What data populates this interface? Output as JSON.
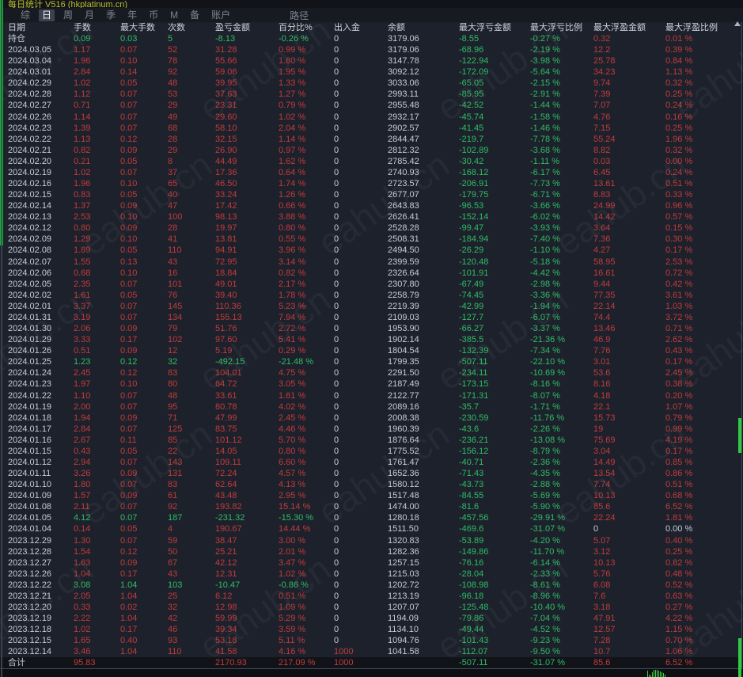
{
  "window": {
    "title": "每日统计 V516 (hkplatinum.cn)",
    "watermark": "eahub.cn"
  },
  "menu_bar": {
    "items": [
      "综",
      "日",
      "周",
      "月",
      "季",
      "年",
      "币",
      "M",
      "备",
      "账户"
    ],
    "selected": "日",
    "path_label": "路径"
  },
  "table": {
    "columns": [
      "日期",
      "手数",
      "最大手数",
      "次数",
      "盈亏金额",
      "百分比%",
      "出入金",
      "余额",
      "最大浮亏金额",
      "最大浮亏比例",
      "最大浮盈金额",
      "最大浮盈比例"
    ],
    "position_label": "持仓",
    "total_label": "合计",
    "rows": [
      [
        "持仓",
        "0.09",
        "0.03",
        "5",
        "-8.13",
        "-0.26 %",
        "0",
        "3179.06",
        "-8.55",
        "-0.27 %",
        "0.32",
        "0.01 %"
      ],
      [
        "2024.03.05",
        "1.17",
        "0.07",
        "52",
        "31.28",
        "0.99 %",
        "0",
        "3179.06",
        "-68.96",
        "-2.19 %",
        "12.2",
        "0.39 %"
      ],
      [
        "2024.03.04",
        "1.96",
        "0.10",
        "78",
        "55.66",
        "1.80 %",
        "0",
        "3147.78",
        "-122.94",
        "-3.98 %",
        "25.78",
        "0.84 %"
      ],
      [
        "2024.03.01",
        "2.84",
        "0.14",
        "92",
        "59.06",
        "1.95 %",
        "0",
        "3092.12",
        "-172.09",
        "-5.64 %",
        "34.23",
        "1.13 %"
      ],
      [
        "2024.02.29",
        "1.02",
        "0.05",
        "48",
        "39.95",
        "1.33 %",
        "0",
        "3033.06",
        "-65.05",
        "-2.15 %",
        "9.74",
        "0.32 %"
      ],
      [
        "2024.02.28",
        "1.12",
        "0.07",
        "53",
        "37.63",
        "1.27 %",
        "0",
        "2993.11",
        "-85.95",
        "-2.91 %",
        "7.39",
        "0.25 %"
      ],
      [
        "2024.02.27",
        "0.71",
        "0.07",
        "29",
        "23.31",
        "0.79 %",
        "0",
        "2955.48",
        "-42.52",
        "-1.44 %",
        "7.07",
        "0.24 %"
      ],
      [
        "2024.02.26",
        "1.14",
        "0.07",
        "49",
        "29.60",
        "1.02 %",
        "0",
        "2932.17",
        "-45.74",
        "-1.58 %",
        "4.76",
        "0.16 %"
      ],
      [
        "2024.02.23",
        "1.39",
        "0.07",
        "68",
        "58.10",
        "2.04 %",
        "0",
        "2902.57",
        "-41.45",
        "-1.46 %",
        "7.15",
        "0.25 %"
      ],
      [
        "2024.02.22",
        "1.13",
        "0.12",
        "28",
        "32.15",
        "1.14 %",
        "0",
        "2844.47",
        "-219.7",
        "-7.78 %",
        "55.24",
        "1.96 %"
      ],
      [
        "2024.02.21",
        "0.82",
        "0.09",
        "29",
        "26.90",
        "0.97 %",
        "0",
        "2812.32",
        "-102.89",
        "-3.68 %",
        "8.82",
        "0.32 %"
      ],
      [
        "2024.02.20",
        "0.21",
        "0.05",
        "8",
        "44.49",
        "1.62 %",
        "0",
        "2785.42",
        "-30.42",
        "-1.11 %",
        "0.03",
        "0.00 %"
      ],
      [
        "2024.02.19",
        "1.02",
        "0.07",
        "37",
        "17.36",
        "0.64 %",
        "0",
        "2740.93",
        "-168.12",
        "-6.17 %",
        "6.45",
        "0.24 %"
      ],
      [
        "2024.02.16",
        "1.96",
        "0.10",
        "65",
        "46.50",
        "1.74 %",
        "0",
        "2723.57",
        "-206.91",
        "-7.73 %",
        "13.61",
        "0.51 %"
      ],
      [
        "2024.02.15",
        "0.83",
        "0.05",
        "40",
        "33.24",
        "1.26 %",
        "0",
        "2677.07",
        "-179.75",
        "-6.71 %",
        "8.83",
        "0.33 %"
      ],
      [
        "2024.02.14",
        "1.37",
        "0.09",
        "47",
        "17.42",
        "0.66 %",
        "0",
        "2643.83",
        "-96.53",
        "-3.66 %",
        "24.99",
        "0.96 %"
      ],
      [
        "2024.02.13",
        "2.53",
        "0.10",
        "100",
        "98.13",
        "3.88 %",
        "0",
        "2626.41",
        "-152.14",
        "-6.02 %",
        "14.42",
        "0.57 %"
      ],
      [
        "2024.02.12",
        "0.80",
        "0.09",
        "28",
        "19.97",
        "0.80 %",
        "0",
        "2528.28",
        "-99.47",
        "-3.93 %",
        "3.64",
        "0.15 %"
      ],
      [
        "2024.02.09",
        "1.29",
        "0.10",
        "41",
        "13.81",
        "0.55 %",
        "0",
        "2508.31",
        "-184.94",
        "-7.40 %",
        "7.36",
        "0.30 %"
      ],
      [
        "2024.02.08",
        "1.89",
        "0.05",
        "110",
        "94.91",
        "3.96 %",
        "0",
        "2494.50",
        "-26.29",
        "-1.10 %",
        "4.27",
        "0.17 %"
      ],
      [
        "2024.02.07",
        "1.55",
        "0.13",
        "43",
        "72.95",
        "3.14 %",
        "0",
        "2399.59",
        "-120.48",
        "-5.18 %",
        "58.95",
        "2.53 %"
      ],
      [
        "2024.02.06",
        "0.68",
        "0.10",
        "16",
        "18.84",
        "0.82 %",
        "0",
        "2326.64",
        "-101.91",
        "-4.42 %",
        "16.61",
        "0.72 %"
      ],
      [
        "2024.02.05",
        "2.35",
        "0.07",
        "101",
        "49.01",
        "2.17 %",
        "0",
        "2307.80",
        "-67.49",
        "-2.98 %",
        "9.44",
        "0.42 %"
      ],
      [
        "2024.02.02",
        "1.61",
        "0.05",
        "76",
        "39.40",
        "1.78 %",
        "0",
        "2258.79",
        "-74.45",
        "-3.36 %",
        "77.35",
        "3.61 %"
      ],
      [
        "2024.02.01",
        "3.37",
        "0.07",
        "145",
        "110.36",
        "5.23 %",
        "0",
        "2219.39",
        "-42.99",
        "-1.94 %",
        "22.14",
        "1.03 %"
      ],
      [
        "2024.01.31",
        "3.19",
        "0.07",
        "134",
        "155.13",
        "7.94 %",
        "0",
        "2109.03",
        "-127.7",
        "-6.07 %",
        "74.4",
        "3.72 %"
      ],
      [
        "2024.01.30",
        "2.06",
        "0.09",
        "79",
        "51.76",
        "2.72 %",
        "0",
        "1953.90",
        "-66.27",
        "-3.37 %",
        "13.46",
        "0.71 %"
      ],
      [
        "2024.01.29",
        "3.33",
        "0.17",
        "102",
        "97.60",
        "5.41 %",
        "0",
        "1902.14",
        "-385.5",
        "-21.36 %",
        "46.9",
        "2.62 %"
      ],
      [
        "2024.01.26",
        "0.51",
        "0.09",
        "12",
        "5.19",
        "0.29 %",
        "0",
        "1804.54",
        "-132.39",
        "-7.34 %",
        "7.76",
        "0.43 %"
      ],
      [
        "2024.01.25",
        "1.23",
        "0.12",
        "32",
        "-492.15",
        "-21.48 %",
        "0",
        "1799.35",
        "-507.11",
        "-22.10 %",
        "3.01",
        "0.17 %"
      ],
      [
        "2024.01.24",
        "2.45",
        "0.12",
        "83",
        "104.01",
        "4.75 %",
        "0",
        "2291.50",
        "-234.11",
        "-10.69 %",
        "53.6",
        "2.45 %"
      ],
      [
        "2024.01.23",
        "1.97",
        "0.10",
        "80",
        "64.72",
        "3.05 %",
        "0",
        "2187.49",
        "-173.15",
        "-8.16 %",
        "8.16",
        "0.38 %"
      ],
      [
        "2024.01.22",
        "1.10",
        "0.07",
        "48",
        "33.61",
        "1.61 %",
        "0",
        "2122.77",
        "-171.31",
        "-8.07 %",
        "4.18",
        "0.20 %"
      ],
      [
        "2024.01.19",
        "2.00",
        "0.07",
        "95",
        "80.78",
        "4.02 %",
        "0",
        "2089.16",
        "-35.7",
        "-1.71 %",
        "22.1",
        "1.07 %"
      ],
      [
        "2024.01.18",
        "1.94",
        "0.09",
        "71",
        "47.99",
        "2.45 %",
        "0",
        "2008.38",
        "-230.59",
        "-11.76 %",
        "15.73",
        "0.79 %"
      ],
      [
        "2024.01.17",
        "2.84",
        "0.07",
        "125",
        "83.75",
        "4.46 %",
        "0",
        "1960.39",
        "-43.6",
        "-2.26 %",
        "19",
        "0.99 %"
      ],
      [
        "2024.01.16",
        "2.67",
        "0.11",
        "85",
        "101.12",
        "5.70 %",
        "0",
        "1876.64",
        "-236.21",
        "-13.08 %",
        "75.69",
        "4.19 %"
      ],
      [
        "2024.01.15",
        "0.43",
        "0.05",
        "22",
        "14.05",
        "0.80 %",
        "0",
        "1775.52",
        "-156.12",
        "-8.79 %",
        "3.04",
        "0.17 %"
      ],
      [
        "2024.01.12",
        "2.94",
        "0.07",
        "143",
        "109.11",
        "6.60 %",
        "0",
        "1761.47",
        "-40.71",
        "-2.36 %",
        "14.49",
        "0.85 %"
      ],
      [
        "2024.01.11",
        "3.26",
        "0.09",
        "131",
        "72.24",
        "4.57 %",
        "0",
        "1652.36",
        "-71.43",
        "-4.35 %",
        "13.54",
        "0.86 %"
      ],
      [
        "2024.01.10",
        "1.80",
        "0.07",
        "83",
        "62.64",
        "4.13 %",
        "0",
        "1580.12",
        "-43.73",
        "-2.88 %",
        "7.74",
        "0.51 %"
      ],
      [
        "2024.01.09",
        "1.57",
        "0.09",
        "61",
        "43.48",
        "2.95 %",
        "0",
        "1517.48",
        "-84.55",
        "-5.69 %",
        "10.13",
        "0.68 %"
      ],
      [
        "2024.01.08",
        "2.11",
        "0.07",
        "92",
        "193.82",
        "15.14 %",
        "0",
        "1474.00",
        "-81.6",
        "-5.90 %",
        "85.6",
        "6.52 %"
      ],
      [
        "2024.01.05",
        "4.12",
        "0.07",
        "187",
        "-231.32",
        "-15.30 %",
        "0",
        "1280.18",
        "-457.56",
        "-29.91 %",
        "22.24",
        "1.81 %"
      ],
      [
        "2024.01.04",
        "0.14",
        "0.05",
        "4",
        "190.67",
        "14.44 %",
        "0",
        "1511.50",
        "-469.6",
        "-31.07 %",
        "0",
        "0.00 %"
      ],
      [
        "2023.12.29",
        "1.30",
        "0.07",
        "59",
        "38.47",
        "3.00 %",
        "0",
        "1320.83",
        "-53.89",
        "-4.20 %",
        "5.07",
        "0.40 %"
      ],
      [
        "2023.12.28",
        "1.54",
        "0.12",
        "50",
        "25.21",
        "2.01 %",
        "0",
        "1282.36",
        "-149.86",
        "-11.70 %",
        "3.12",
        "0.25 %"
      ],
      [
        "2023.12.27",
        "1.63",
        "0.09",
        "67",
        "42.12",
        "3.47 %",
        "0",
        "1257.15",
        "-76.16",
        "-6.14 %",
        "10.13",
        "0.82 %"
      ],
      [
        "2023.12.26",
        "1.04",
        "0.17",
        "43",
        "12.31",
        "1.02 %",
        "0",
        "1215.03",
        "-28.04",
        "-2.33 %",
        "5.76",
        "0.48 %"
      ],
      [
        "2023.12.22",
        "3.08",
        "1.04",
        "103",
        "-10.47",
        "-0.86 %",
        "0",
        "1202.72",
        "-108.98",
        "-8.61 %",
        "6.08",
        "0.52 %"
      ],
      [
        "2023.12.21",
        "2.05",
        "1.04",
        "25",
        "6.12",
        "0.51 %",
        "0",
        "1213.19",
        "-96.18",
        "-8.96 %",
        "7.6",
        "0.63 %"
      ],
      [
        "2023.12.20",
        "0.33",
        "0.02",
        "32",
        "12.98",
        "1.09 %",
        "0",
        "1207.07",
        "-125.48",
        "-10.40 %",
        "3.18",
        "0.27 %"
      ],
      [
        "2023.12.19",
        "2.22",
        "1.04",
        "42",
        "59.99",
        "5.29 %",
        "0",
        "1194.09",
        "-79.86",
        "-7.04 %",
        "47.91",
        "4.22 %"
      ],
      [
        "2023.12.18",
        "1.02",
        "0.17",
        "46",
        "39.34",
        "3.59 %",
        "0",
        "1134.10",
        "-49.44",
        "-4.52 %",
        "12.57",
        "1.15 %"
      ],
      [
        "2023.12.15",
        "1.65",
        "0.40",
        "93",
        "53.18",
        "5.11 %",
        "0",
        "1094.76",
        "-101.43",
        "-9.23 %",
        "7.28",
        "0.70 %"
      ],
      [
        "2023.12.14",
        "3.46",
        "1.04",
        "110",
        "41.58",
        "4.16 %",
        "1000",
        "1041.58",
        "-112.07",
        "-9.50 %",
        "10.7",
        "1.06 %"
      ],
      [
        "合计",
        "95.83",
        "",
        "",
        "2170.93",
        "217.09 %",
        "1000",
        "",
        "-507.11",
        "-31.07 %",
        "85.6",
        "6.52 %"
      ]
    ]
  },
  "colors": {
    "profit_red": "#c13c3c",
    "loss_green": "#2fbd66",
    "text_gray": "#c7ccd5",
    "menu_gray": "#7d8592",
    "selected_bg": "#3c424e",
    "title_yellow": "#b9bd2d",
    "table_bg": "#1d212b",
    "accent_green": "#2ecc3e"
  },
  "mini_bars": [
    8,
    3,
    2,
    6,
    9,
    9,
    9,
    8,
    7,
    6,
    5,
    3
  ]
}
